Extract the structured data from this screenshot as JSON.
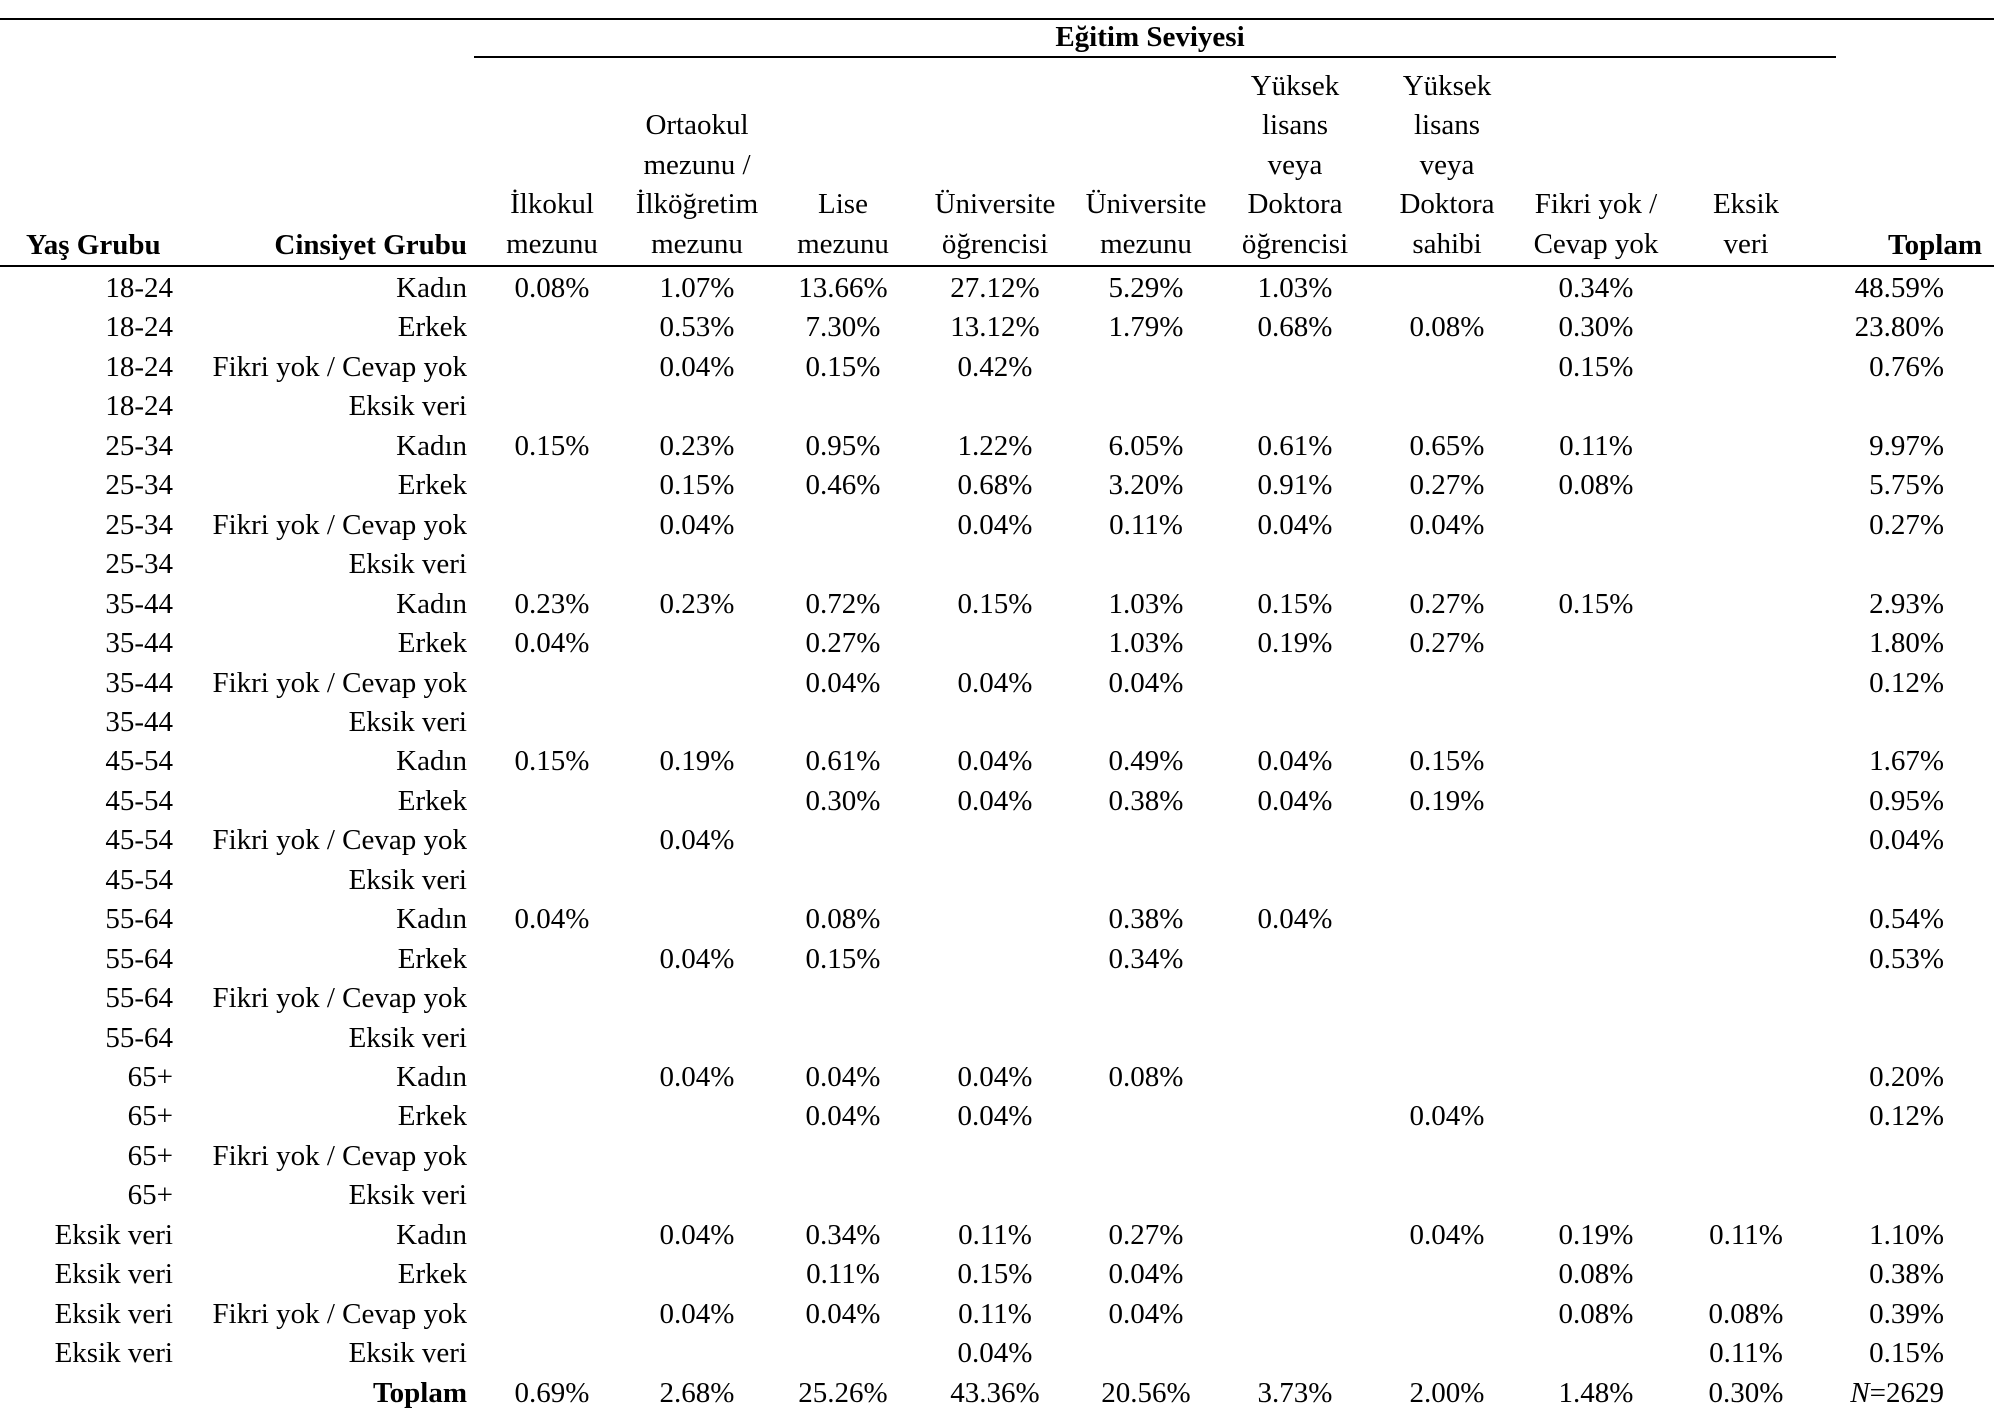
{
  "table": {
    "group_header": "Eğitim Seviyesi",
    "headers": {
      "age": "Yaş Grubu",
      "gender": "Cinsiyet Grubu",
      "total": "Toplam",
      "education": [
        [
          "İlkokul",
          "mezunu"
        ],
        [
          "Ortaokul",
          "mezunu /",
          "İlköğretim",
          "mezunu"
        ],
        [
          "Lise",
          "mezunu"
        ],
        [
          "Üniversite",
          "öğrencisi"
        ],
        [
          "Üniversite",
          "mezunu"
        ],
        [
          "Yüksek",
          "lisans",
          "veya",
          "Doktora",
          "öğrencisi"
        ],
        [
          "Yüksek",
          "lisans",
          "veya",
          "Doktora",
          "sahibi"
        ],
        [
          "Fikri yok /",
          "Cevap yok"
        ],
        [
          "Eksik",
          "veri"
        ]
      ]
    },
    "rows": [
      {
        "age": "18-24",
        "gender": "Kadın",
        "values": [
          "0.08%",
          "1.07%",
          "13.66%",
          "27.12%",
          "5.29%",
          "1.03%",
          "",
          "0.34%",
          ""
        ],
        "total": "48.59%"
      },
      {
        "age": "18-24",
        "gender": "Erkek",
        "values": [
          "",
          "0.53%",
          "7.30%",
          "13.12%",
          "1.79%",
          "0.68%",
          "0.08%",
          "0.30%",
          ""
        ],
        "total": "23.80%"
      },
      {
        "age": "18-24",
        "gender": "Fikri yok / Cevap yok",
        "values": [
          "",
          "0.04%",
          "0.15%",
          "0.42%",
          "",
          "",
          "",
          "0.15%",
          ""
        ],
        "total": "0.76%"
      },
      {
        "age": "18-24",
        "gender": "Eksik veri",
        "values": [
          "",
          "",
          "",
          "",
          "",
          "",
          "",
          "",
          ""
        ],
        "total": ""
      },
      {
        "age": "25-34",
        "gender": "Kadın",
        "values": [
          "0.15%",
          "0.23%",
          "0.95%",
          "1.22%",
          "6.05%",
          "0.61%",
          "0.65%",
          "0.11%",
          ""
        ],
        "total": "9.97%"
      },
      {
        "age": "25-34",
        "gender": "Erkek",
        "values": [
          "",
          "0.15%",
          "0.46%",
          "0.68%",
          "3.20%",
          "0.91%",
          "0.27%",
          "0.08%",
          ""
        ],
        "total": "5.75%"
      },
      {
        "age": "25-34",
        "gender": "Fikri yok / Cevap yok",
        "values": [
          "",
          "0.04%",
          "",
          "0.04%",
          "0.11%",
          "0.04%",
          "0.04%",
          "",
          ""
        ],
        "total": "0.27%"
      },
      {
        "age": "25-34",
        "gender": "Eksik veri",
        "values": [
          "",
          "",
          "",
          "",
          "",
          "",
          "",
          "",
          ""
        ],
        "total": ""
      },
      {
        "age": "35-44",
        "gender": "Kadın",
        "values": [
          "0.23%",
          "0.23%",
          "0.72%",
          "0.15%",
          "1.03%",
          "0.15%",
          "0.27%",
          "0.15%",
          ""
        ],
        "total": "2.93%"
      },
      {
        "age": "35-44",
        "gender": "Erkek",
        "values": [
          "0.04%",
          "",
          "0.27%",
          "",
          "1.03%",
          "0.19%",
          "0.27%",
          "",
          ""
        ],
        "total": "1.80%"
      },
      {
        "age": "35-44",
        "gender": "Fikri yok / Cevap yok",
        "values": [
          "",
          "",
          "0.04%",
          "0.04%",
          "0.04%",
          "",
          "",
          "",
          ""
        ],
        "total": "0.12%"
      },
      {
        "age": "35-44",
        "gender": "Eksik veri",
        "values": [
          "",
          "",
          "",
          "",
          "",
          "",
          "",
          "",
          ""
        ],
        "total": ""
      },
      {
        "age": "45-54",
        "gender": "Kadın",
        "values": [
          "0.15%",
          "0.19%",
          "0.61%",
          "0.04%",
          "0.49%",
          "0.04%",
          "0.15%",
          "",
          ""
        ],
        "total": "1.67%"
      },
      {
        "age": "45-54",
        "gender": "Erkek",
        "values": [
          "",
          "",
          "0.30%",
          "0.04%",
          "0.38%",
          "0.04%",
          "0.19%",
          "",
          ""
        ],
        "total": "0.95%"
      },
      {
        "age": "45-54",
        "gender": "Fikri yok / Cevap yok",
        "values": [
          "",
          "0.04%",
          "",
          "",
          "",
          "",
          "",
          "",
          ""
        ],
        "total": "0.04%"
      },
      {
        "age": "45-54",
        "gender": "Eksik veri",
        "values": [
          "",
          "",
          "",
          "",
          "",
          "",
          "",
          "",
          ""
        ],
        "total": ""
      },
      {
        "age": "55-64",
        "gender": "Kadın",
        "values": [
          "0.04%",
          "",
          "0.08%",
          "",
          "0.38%",
          "0.04%",
          "",
          "",
          ""
        ],
        "total": "0.54%"
      },
      {
        "age": "55-64",
        "gender": "Erkek",
        "values": [
          "",
          "0.04%",
          "0.15%",
          "",
          "0.34%",
          "",
          "",
          "",
          ""
        ],
        "total": "0.53%"
      },
      {
        "age": "55-64",
        "gender": "Fikri yok / Cevap yok",
        "values": [
          "",
          "",
          "",
          "",
          "",
          "",
          "",
          "",
          ""
        ],
        "total": ""
      },
      {
        "age": "55-64",
        "gender": "Eksik veri",
        "values": [
          "",
          "",
          "",
          "",
          "",
          "",
          "",
          "",
          ""
        ],
        "total": ""
      },
      {
        "age": "65+",
        "gender": "Kadın",
        "values": [
          "",
          "0.04%",
          "0.04%",
          "0.04%",
          "0.08%",
          "",
          "",
          "",
          ""
        ],
        "total": "0.20%"
      },
      {
        "age": "65+",
        "gender": "Erkek",
        "values": [
          "",
          "",
          "0.04%",
          "0.04%",
          "",
          "",
          "0.04%",
          "",
          ""
        ],
        "total": "0.12%"
      },
      {
        "age": "65+",
        "gender": "Fikri yok / Cevap yok",
        "values": [
          "",
          "",
          "",
          "",
          "",
          "",
          "",
          "",
          ""
        ],
        "total": ""
      },
      {
        "age": "65+",
        "gender": "Eksik veri",
        "values": [
          "",
          "",
          "",
          "",
          "",
          "",
          "",
          "",
          ""
        ],
        "total": ""
      },
      {
        "age": "Eksik veri",
        "gender": "Kadın",
        "values": [
          "",
          "0.04%",
          "0.34%",
          "0.11%",
          "0.27%",
          "",
          "0.04%",
          "0.19%",
          "0.11%"
        ],
        "total": "1.10%"
      },
      {
        "age": "Eksik veri",
        "gender": "Erkek",
        "values": [
          "",
          "",
          "0.11%",
          "0.15%",
          "0.04%",
          "",
          "",
          "0.08%",
          ""
        ],
        "total": "0.38%"
      },
      {
        "age": "Eksik veri",
        "gender": "Fikri yok / Cevap yok",
        "values": [
          "",
          "0.04%",
          "0.04%",
          "0.11%",
          "0.04%",
          "",
          "",
          "0.08%",
          "0.08%"
        ],
        "total": "0.39%"
      },
      {
        "age": "Eksik veri",
        "gender": "Eksik veri",
        "values": [
          "",
          "",
          "",
          "0.04%",
          "",
          "",
          "",
          "",
          "0.11%"
        ],
        "total": "0.15%"
      }
    ],
    "footer": {
      "label": "Toplam",
      "values": [
        "0.69%",
        "2.68%",
        "25.26%",
        "43.36%",
        "20.56%",
        "3.73%",
        "2.00%",
        "1.48%",
        "0.30%"
      ],
      "total_symbol": "N",
      "total_value": "=2629"
    }
  }
}
